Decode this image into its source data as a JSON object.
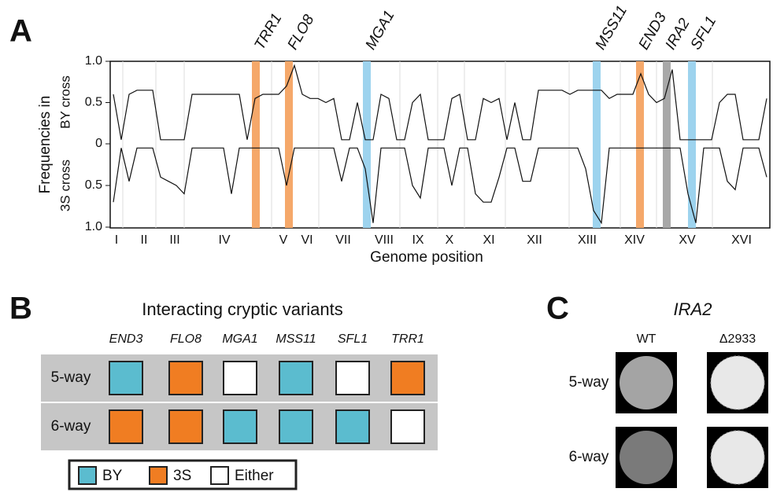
{
  "panel_a": {
    "label": "A",
    "y_label": "Frequencies in",
    "by_label": "BY cross",
    "s3_label": "3S cross",
    "by_ticks": [
      {
        "value": 1,
        "label": "1.0"
      },
      0.5,
      0
    ],
    "s3_ticks": [
      0.5,
      {
        "value": 1,
        "label": "1.0"
      }
    ],
    "x_label": "Genome position",
    "chromosomes": [
      "I",
      "II",
      "III",
      "IV",
      "V",
      "VI",
      "VII",
      "VIII",
      "IX",
      "X",
      "XI",
      "XII",
      "XIII",
      "XIV",
      "XV",
      "XVI"
    ],
    "genes": [
      {
        "name": "TRR1",
        "color": "#f5a86a"
      },
      {
        "name": "FLO8",
        "color": "#f5a86a"
      },
      {
        "name": "MGA1",
        "color": "#9dd3ee"
      },
      {
        "name": "MSS11",
        "color": "#9dd3ee"
      },
      {
        "name": "END3",
        "color": "#f5a86a"
      },
      {
        "name": "IRA2",
        "color": "#a8a8a8"
      },
      {
        "name": "SFL1",
        "color": "#9dd3ee"
      }
    ],
    "by_values": [
      0.6,
      0.05,
      0.6,
      0.65,
      0.65,
      0.65,
      0.05,
      0.05,
      0.05,
      0.05,
      0.6,
      0.6,
      0.6,
      0.6,
      0.6,
      0.6,
      0.6,
      0.05,
      0.55,
      0.6,
      0.6,
      0.6,
      0.7,
      0.95,
      0.6,
      0.55,
      0.55,
      0.5,
      0.55,
      0.05,
      0.05,
      0.5,
      0.05,
      0.05,
      0.6,
      0.55,
      0.05,
      0.05,
      0.5,
      0.6,
      0.05,
      0.05,
      0.05,
      0.55,
      0.6,
      0.05,
      0.05,
      0.55,
      0.5,
      0.55,
      0.05,
      0.5,
      0.05,
      0.05,
      0.65,
      0.65,
      0.65,
      0.65,
      0.6,
      0.65,
      0.65,
      0.65,
      0.65,
      0.55,
      0.6,
      0.6,
      0.6,
      0.85,
      0.6,
      0.5,
      0.55,
      0.9,
      0.05,
      0.05,
      0.05,
      0.05,
      0.05,
      0.5,
      0.6,
      0.6,
      0.05,
      0.05,
      0.05,
      0.55
    ],
    "s3_values": [
      0.7,
      0.05,
      0.45,
      0.05,
      0.05,
      0.05,
      0.4,
      0.45,
      0.5,
      0.6,
      0.05,
      0.05,
      0.05,
      0.05,
      0.05,
      0.6,
      0.05,
      0.05,
      0.05,
      0.05,
      0.05,
      0.05,
      0.5,
      0.05,
      0.05,
      0.05,
      0.05,
      0.05,
      0.05,
      0.45,
      0.05,
      0.05,
      0.3,
      0.95,
      0.05,
      0.05,
      0.05,
      0.05,
      0.5,
      0.65,
      0.05,
      0.05,
      0.05,
      0.5,
      0.05,
      0.05,
      0.6,
      0.7,
      0.7,
      0.4,
      0.05,
      0.05,
      0.45,
      0.45,
      0.05,
      0.05,
      0.05,
      0.05,
      0.05,
      0.05,
      0.3,
      0.8,
      0.95,
      0.05,
      0.05,
      0.05,
      0.05,
      0.05,
      0.05,
      0.05,
      0.05,
      0.05,
      0.05,
      0.6,
      0.95,
      0.05,
      0.05,
      0.05,
      0.45,
      0.55,
      0.05,
      0.05,
      0.05,
      0.4
    ]
  },
  "panel_b": {
    "label": "B",
    "title": "Interacting cryptic variants",
    "genes": [
      "END3",
      "FLO8",
      "MGA1",
      "MSS11",
      "SFL1",
      "TRR1"
    ],
    "legend": [
      {
        "name": "BY",
        "color": "#5bbccf"
      },
      {
        "name": "3S",
        "color": "#f07d22"
      },
      {
        "name": "Either",
        "color": "#ffffff"
      }
    ],
    "rows": [
      {
        "label": "5-way",
        "cells": [
          "BY",
          "3S",
          "Either",
          "BY",
          "Either",
          "3S"
        ]
      },
      {
        "label": "6-way",
        "cells": [
          "3S",
          "3S",
          "BY",
          "BY",
          "BY",
          "Either"
        ]
      }
    ]
  },
  "panel_c": {
    "label": "C",
    "title": "IRA2",
    "columns": [
      "WT",
      "Δ2933"
    ],
    "rows": [
      "5-way",
      "6-way"
    ]
  }
}
